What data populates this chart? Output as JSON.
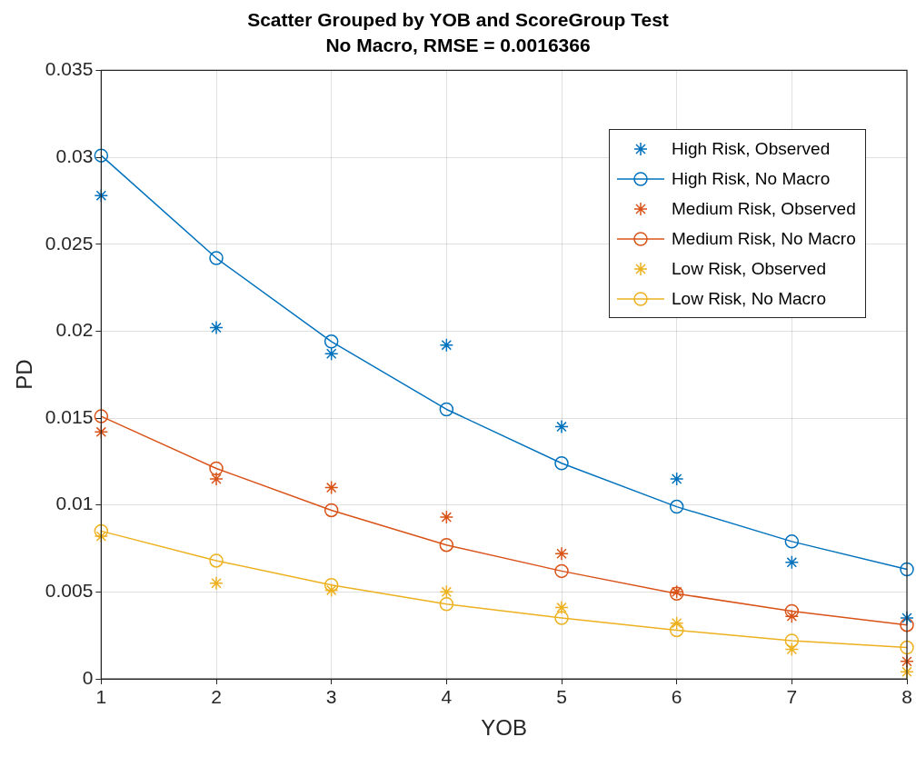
{
  "chart_data": {
    "type": "line",
    "title": "Scatter Grouped by YOB and ScoreGroup Test",
    "subtitle": "No Macro, RMSE = 0.0016366",
    "xlabel": "YOB",
    "ylabel": "PD",
    "x": [
      1,
      2,
      3,
      4,
      5,
      6,
      7,
      8
    ],
    "xlim": [
      1,
      8
    ],
    "xticks": [
      1,
      2,
      3,
      4,
      5,
      6,
      7,
      8
    ],
    "ylim": [
      0,
      0.035
    ],
    "yticks": [
      0,
      0.005,
      0.01,
      0.015,
      0.02,
      0.025,
      0.03,
      0.035
    ],
    "grid": true,
    "legend": "top right",
    "series": [
      {
        "name": "High Risk, Observed",
        "type": "scatter",
        "marker": "cross",
        "color": "#0072bd",
        "values": [
          0.0278,
          0.0202,
          0.0187,
          0.0192,
          0.0145,
          0.0115,
          0.0067,
          0.0035
        ]
      },
      {
        "name": "High Risk, No Macro",
        "type": "line",
        "marker": "circle",
        "line_style": "solid",
        "color": "#0072bd",
        "values": [
          0.0301,
          0.0242,
          0.0194,
          0.0155,
          0.0124,
          0.0099,
          0.0079,
          0.0063
        ]
      },
      {
        "name": "Medium Risk, Observed",
        "type": "scatter",
        "marker": "cross",
        "color": "#d95319",
        "values": [
          0.0142,
          0.0115,
          0.011,
          0.0093,
          0.0072,
          0.005,
          0.0036,
          0.001
        ]
      },
      {
        "name": "Medium Risk, No Macro",
        "type": "line",
        "marker": "circle",
        "line_style": "solid",
        "color": "#d95319",
        "values": [
          0.0151,
          0.0121,
          0.0097,
          0.0077,
          0.0062,
          0.0049,
          0.0039,
          0.0031
        ]
      },
      {
        "name": "Low Risk, Observed",
        "type": "scatter",
        "marker": "cross",
        "color": "#edb120",
        "values": [
          0.0082,
          0.0055,
          0.0051,
          0.005,
          0.0041,
          0.0032,
          0.0017,
          0.0004
        ]
      },
      {
        "name": "Low Risk, No Macro",
        "type": "line",
        "marker": "circle",
        "line_style": "solid",
        "color": "#edb120",
        "values": [
          0.0085,
          0.0068,
          0.0054,
          0.0043,
          0.0035,
          0.0028,
          0.0022,
          0.0018
        ]
      }
    ]
  }
}
